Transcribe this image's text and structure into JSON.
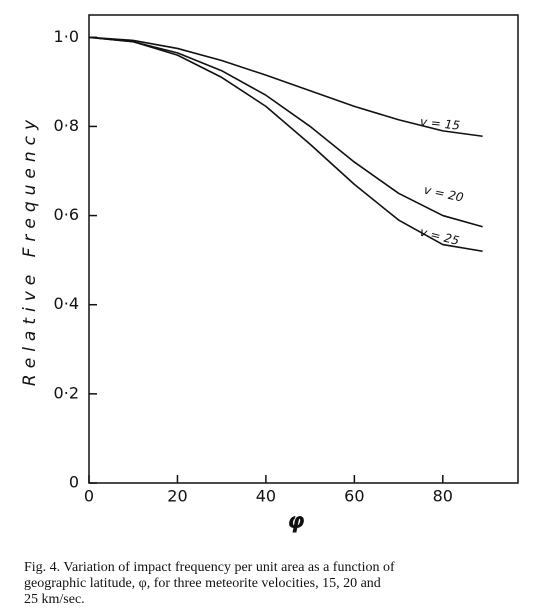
{
  "chart_data": {
    "type": "line",
    "x": [
      0,
      10,
      20,
      30,
      40,
      50,
      60,
      70,
      80,
      89
    ],
    "series": [
      {
        "name": "v = 15",
        "color": "#111111",
        "values": [
          1.0,
          0.993,
          0.975,
          0.948,
          0.915,
          0.88,
          0.845,
          0.815,
          0.79,
          0.778
        ]
      },
      {
        "name": "v = 20",
        "color": "#111111",
        "values": [
          1.0,
          0.99,
          0.965,
          0.925,
          0.87,
          0.8,
          0.72,
          0.65,
          0.6,
          0.575
        ]
      },
      {
        "name": "v = 25",
        "color": "#111111",
        "values": [
          1.0,
          0.99,
          0.96,
          0.91,
          0.845,
          0.76,
          0.67,
          0.59,
          0.535,
          0.52
        ]
      }
    ],
    "xlim": [
      0,
      97
    ],
    "ylim": [
      0,
      1.05
    ],
    "xticks": [
      0,
      20,
      40,
      60,
      80
    ],
    "yticks": [
      {
        "value": 0,
        "label": "0"
      },
      {
        "value": 0.2,
        "label": "0·2"
      },
      {
        "value": 0.4,
        "label": "0·4"
      },
      {
        "value": 0.6,
        "label": "0·6"
      },
      {
        "value": 0.8,
        "label": "0·8"
      },
      {
        "value": 1.0,
        "label": "1·0"
      }
    ],
    "x_label": "φ",
    "y_label": "Relative  Frequency",
    "caption": [
      "Fig. 4.  Variation of impact frequency per unit area as a function of",
      "geographic latitude, φ, for three meteorite velocities, 15, 20 and",
      "25 km/sec."
    ]
  }
}
